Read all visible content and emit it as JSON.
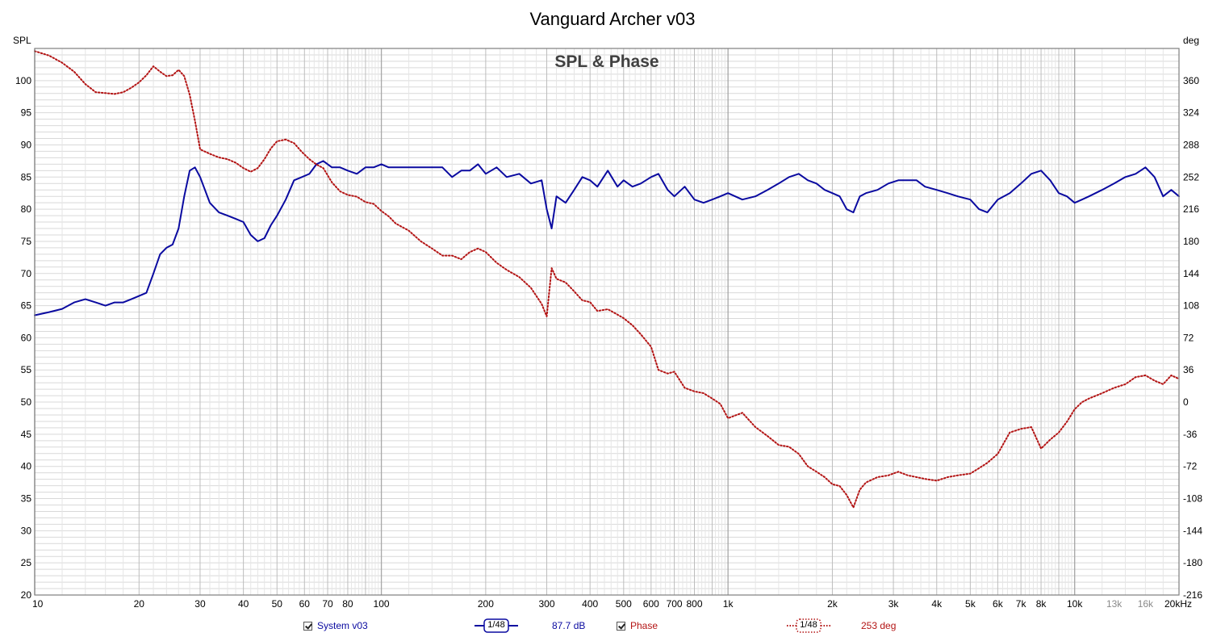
{
  "chart_data": {
    "type": "line",
    "title": "Vanguard Archer v03",
    "subtitle": "SPL & Phase",
    "ylabel_left": "SPL",
    "ylabel_right": "deg",
    "x_unit": "kHz",
    "xscale": "log",
    "xlim": [
      10,
      20000
    ],
    "ylim_left": [
      20,
      105
    ],
    "ylim_right": [
      -216,
      396
    ],
    "grid": true,
    "x_ticks": [
      {
        "value": 10,
        "label": "10"
      },
      {
        "value": 20,
        "label": "20"
      },
      {
        "value": 30,
        "label": "30"
      },
      {
        "value": 40,
        "label": "40"
      },
      {
        "value": 50,
        "label": "50"
      },
      {
        "value": 60,
        "label": "60"
      },
      {
        "value": 70,
        "label": "70"
      },
      {
        "value": 80,
        "label": "80"
      },
      {
        "value": 100,
        "label": "100"
      },
      {
        "value": 200,
        "label": "200"
      },
      {
        "value": 300,
        "label": "300"
      },
      {
        "value": 400,
        "label": "400"
      },
      {
        "value": 500,
        "label": "500"
      },
      {
        "value": 600,
        "label": "600"
      },
      {
        "value": 700,
        "label": "700"
      },
      {
        "value": 800,
        "label": "800"
      },
      {
        "value": 1000,
        "label": "1k"
      },
      {
        "value": 2000,
        "label": "2k"
      },
      {
        "value": 3000,
        "label": "3k"
      },
      {
        "value": 4000,
        "label": "4k"
      },
      {
        "value": 5000,
        "label": "5k"
      },
      {
        "value": 6000,
        "label": "6k"
      },
      {
        "value": 7000,
        "label": "7k"
      },
      {
        "value": 8000,
        "label": "8k"
      },
      {
        "value": 10000,
        "label": "10k"
      },
      {
        "value": 13000,
        "label": "13k",
        "grey": true
      },
      {
        "value": 16000,
        "label": "16k",
        "grey": true
      },
      {
        "value": 20000,
        "label": "20kHz"
      }
    ],
    "y_ticks_left": [
      20,
      25,
      30,
      35,
      40,
      45,
      50,
      55,
      60,
      65,
      70,
      75,
      80,
      85,
      90,
      95,
      100
    ],
    "y_ticks_right": [
      -216,
      -180,
      -144,
      -108,
      -72,
      -36,
      0,
      36,
      72,
      108,
      144,
      180,
      216,
      252,
      288,
      324,
      360
    ],
    "series": [
      {
        "name": "System v03",
        "axis": "left",
        "color": "#0a0aa0",
        "style": "solid",
        "x": [
          10,
          11,
          12,
          13,
          14,
          15,
          16,
          17,
          18,
          19,
          20,
          21,
          22,
          23,
          24,
          25,
          26,
          27,
          28,
          29,
          30,
          32,
          34,
          36,
          38,
          40,
          42,
          44,
          46,
          48,
          50,
          53,
          56,
          59,
          62,
          65,
          68,
          72,
          76,
          80,
          85,
          90,
          95,
          100,
          105,
          110,
          120,
          130,
          140,
          150,
          160,
          170,
          180,
          190,
          200,
          215,
          230,
          250,
          270,
          290,
          300,
          310,
          320,
          340,
          360,
          380,
          400,
          420,
          450,
          480,
          500,
          530,
          560,
          600,
          630,
          670,
          700,
          750,
          800,
          850,
          900,
          950,
          1000,
          1100,
          1200,
          1300,
          1400,
          1500,
          1600,
          1700,
          1800,
          1900,
          2000,
          2100,
          2200,
          2300,
          2400,
          2500,
          2700,
          2900,
          3100,
          3300,
          3500,
          3700,
          4000,
          4300,
          4600,
          5000,
          5300,
          5600,
          6000,
          6500,
          7000,
          7500,
          8000,
          8500,
          9000,
          9500,
          10000,
          10500,
          11000,
          12000,
          13000,
          14000,
          15000,
          16000,
          17000,
          18000,
          19000,
          20000
        ],
        "values": [
          63.5,
          64,
          64.5,
          65.5,
          66,
          65.5,
          65,
          65.5,
          65.5,
          66,
          66.5,
          67,
          70,
          73,
          74,
          74.5,
          77,
          82,
          86,
          86.5,
          85,
          81,
          79.5,
          79,
          78.5,
          78,
          76,
          75,
          75.5,
          77.5,
          79,
          81.5,
          84.5,
          85,
          85.5,
          87,
          87.5,
          86.5,
          86.5,
          86,
          85.5,
          86.5,
          86.5,
          87,
          86.5,
          86.5,
          86.5,
          86.5,
          86.5,
          86.5,
          85,
          86,
          86,
          87,
          85.5,
          86.5,
          85,
          85.5,
          84,
          84.5,
          80,
          77,
          82,
          81,
          83,
          85,
          84.5,
          83.5,
          86,
          83.5,
          84.5,
          83.5,
          84,
          85,
          85.5,
          83,
          82,
          83.5,
          81.5,
          81,
          81.5,
          82,
          82.5,
          81.5,
          82,
          83,
          84,
          85,
          85.5,
          84.5,
          84,
          83,
          82.5,
          82,
          80,
          79.5,
          82,
          82.5,
          83,
          84,
          84.5,
          84.5,
          84.5,
          83.5,
          83,
          82.5,
          82,
          81.5,
          80,
          79.5,
          81.5,
          82.5,
          84,
          85.5,
          86,
          84.5,
          82.5,
          82,
          81,
          81.5,
          82,
          83,
          84,
          85,
          85.5,
          86.5,
          85,
          82,
          83,
          82
        ]
      },
      {
        "name": "Phase",
        "axis": "right",
        "color": "#b31414",
        "style": "dotted",
        "x": [
          10,
          11,
          12,
          13,
          14,
          15,
          16,
          17,
          18,
          19,
          20,
          21,
          22,
          23,
          24,
          25,
          26,
          27,
          28,
          29,
          30,
          32,
          34,
          36,
          38,
          40,
          42,
          44,
          46,
          48,
          50,
          53,
          56,
          59,
          62,
          65,
          68,
          72,
          76,
          80,
          85,
          90,
          95,
          100,
          105,
          110,
          120,
          130,
          140,
          150,
          160,
          170,
          180,
          190,
          200,
          215,
          230,
          250,
          270,
          290,
          300,
          310,
          320,
          340,
          360,
          380,
          400,
          420,
          450,
          480,
          500,
          530,
          560,
          600,
          630,
          670,
          700,
          750,
          800,
          850,
          900,
          950,
          1000,
          1100,
          1200,
          1300,
          1400,
          1500,
          1600,
          1700,
          1800,
          1900,
          2000,
          2100,
          2200,
          2300,
          2400,
          2500,
          2700,
          2900,
          3100,
          3300,
          3500,
          3700,
          4000,
          4300,
          4600,
          5000,
          5300,
          5600,
          6000,
          6500,
          7000,
          7500,
          8000,
          8500,
          9000,
          9500,
          10000,
          10500,
          11000,
          12000,
          13000,
          14000,
          15000,
          16000,
          17000,
          18000,
          19000,
          20000
        ],
        "values": [
          393,
          388,
          380,
          370,
          356,
          347,
          346,
          345,
          347,
          352,
          358,
          366,
          376,
          370,
          365,
          366,
          372,
          365,
          344,
          315,
          283,
          278,
          274,
          272,
          268,
          262,
          258,
          262,
          272,
          284,
          292,
          294,
          290,
          280,
          272,
          266,
          262,
          246,
          236,
          232,
          230,
          224,
          222,
          214,
          208,
          200,
          192,
          180,
          172,
          164,
          164,
          160,
          168,
          172,
          168,
          156,
          148,
          140,
          128,
          110,
          96,
          150,
          138,
          134,
          124,
          114,
          112,
          102,
          104,
          98,
          94,
          86,
          76,
          62,
          36,
          32,
          34,
          16,
          12,
          10,
          4,
          -2,
          -18,
          -12,
          -28,
          -38,
          -48,
          -50,
          -58,
          -72,
          -78,
          -84,
          -92,
          -94,
          -104,
          -118,
          -98,
          -90,
          -84,
          -82,
          -78,
          -82,
          -84,
          -86,
          -88,
          -84,
          -82,
          -80,
          -74,
          -68,
          -58,
          -34,
          -30,
          -28,
          -52,
          -42,
          -34,
          -22,
          -8,
          0,
          4,
          10,
          16,
          20,
          28,
          30,
          24,
          20,
          30,
          26
        ]
      }
    ]
  },
  "legend": {
    "system_label": "System v03",
    "system_smoothing": "1/48",
    "system_value": "87.7 dB",
    "phase_label": "Phase",
    "phase_smoothing": "1/48",
    "phase_value": "253 deg"
  },
  "colors": {
    "spl": "#0a0aa0",
    "phase": "#b31414",
    "grid_minor": "#d9d9d9",
    "grid_major": "#a8a8a8",
    "frame": "#7f7f7f"
  }
}
